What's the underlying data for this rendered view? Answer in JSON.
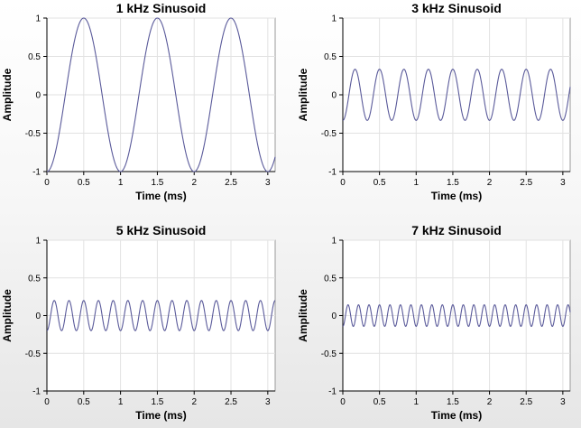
{
  "chart_data": [
    {
      "type": "line",
      "title": "1 kHz Sinusoid",
      "xlabel": "Time (ms)",
      "ylabel": "Amplitude",
      "xlim": [
        0,
        3.1
      ],
      "ylim": [
        -1,
        1
      ],
      "xticks": [
        0,
        0.5,
        1,
        1.5,
        2,
        2.5,
        3
      ],
      "xtick_labels": [
        "0",
        "0.5",
        "1",
        "1.5",
        "2",
        "2.5",
        "3"
      ],
      "yticks": [
        1,
        0.5,
        0,
        -0.5,
        -1
      ],
      "ytick_labels": [
        "1",
        "0.5",
        "0",
        "-0.5",
        "-1"
      ],
      "grid": true,
      "series": [
        {
          "frequency_khz": 1,
          "amplitude": 1,
          "x": [
            0,
            3.1
          ],
          "color": "#5a5a9a"
        }
      ]
    },
    {
      "type": "line",
      "title": "3 kHz Sinusoid",
      "xlabel": "Time (ms)",
      "ylabel": "Amplitude",
      "xlim": [
        0,
        3.1
      ],
      "ylim": [
        -1,
        1
      ],
      "xticks": [
        0,
        0.5,
        1,
        1.5,
        2,
        2.5,
        3
      ],
      "xtick_labels": [
        "0",
        "0.5",
        "1",
        "1.5",
        "2",
        "2.5",
        "3"
      ],
      "yticks": [
        1,
        0.5,
        0,
        -0.5,
        -1
      ],
      "ytick_labels": [
        "1",
        "0.5",
        "0",
        "-0.5",
        "-1"
      ],
      "grid": true,
      "series": [
        {
          "frequency_khz": 3,
          "amplitude": 0.333,
          "x": [
            0,
            3.1
          ],
          "color": "#5a5a9a"
        }
      ]
    },
    {
      "type": "line",
      "title": "5 kHz Sinusoid",
      "xlabel": "Time (ms)",
      "ylabel": "Amplitude",
      "xlim": [
        0,
        3.1
      ],
      "ylim": [
        -1,
        1
      ],
      "xticks": [
        0,
        0.5,
        1,
        1.5,
        2,
        2.5,
        3
      ],
      "xtick_labels": [
        "0",
        "0.5",
        "1",
        "1.5",
        "2",
        "2.5",
        "3"
      ],
      "yticks": [
        1,
        0.5,
        0,
        -0.5,
        -1
      ],
      "ytick_labels": [
        "1",
        "0.5",
        "0",
        "-0.5",
        "-1"
      ],
      "grid": true,
      "series": [
        {
          "frequency_khz": 5,
          "amplitude": 0.2,
          "x": [
            0,
            3.1
          ],
          "color": "#5a5a9a"
        }
      ]
    },
    {
      "type": "line",
      "title": "7 kHz Sinusoid",
      "xlabel": "Time (ms)",
      "ylabel": "Amplitude",
      "xlim": [
        0,
        3.1
      ],
      "ylim": [
        -1,
        1
      ],
      "xticks": [
        0,
        0.5,
        1,
        1.5,
        2,
        2.5,
        3
      ],
      "xtick_labels": [
        "0",
        "0.5",
        "1",
        "1.5",
        "2",
        "2.5",
        "3"
      ],
      "yticks": [
        1,
        0.5,
        0,
        -0.5,
        -1
      ],
      "ytick_labels": [
        "1",
        "0.5",
        "0",
        "-0.5",
        "-1"
      ],
      "grid": true,
      "series": [
        {
          "frequency_khz": 7,
          "amplitude": 0.143,
          "x": [
            0,
            3.1
          ],
          "color": "#5a5a9a"
        }
      ]
    }
  ]
}
